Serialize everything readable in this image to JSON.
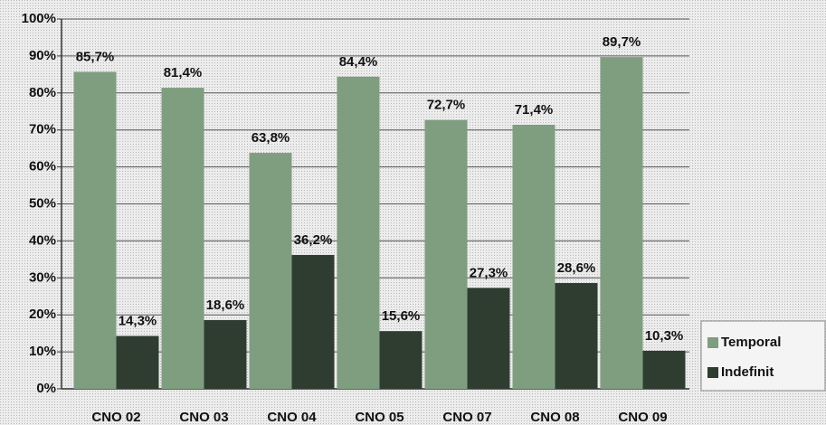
{
  "chart_data": {
    "type": "bar",
    "categories": [
      "CNO 02",
      "CNO 03",
      "CNO 04",
      "CNO 05",
      "CNO 07",
      "CNO 08",
      "CNO 09"
    ],
    "series": [
      {
        "name": "Temporal",
        "color": "#7f9e80",
        "values": [
          85.7,
          81.4,
          63.8,
          84.4,
          72.7,
          71.4,
          89.7
        ],
        "value_labels": [
          "85,7%",
          "81,4%",
          "63,8%",
          "84,4%",
          "72,7%",
          "71,4%",
          "89,7%"
        ]
      },
      {
        "name": "Indefinit",
        "color": "#2f3d31",
        "values": [
          14.3,
          18.6,
          36.2,
          15.6,
          27.3,
          28.6,
          10.3
        ],
        "value_labels": [
          "14,3%",
          "18,6%",
          "36,2%",
          "15,6%",
          "27,3%",
          "28,6%",
          "10,3%"
        ]
      }
    ],
    "ylim": [
      0,
      100
    ],
    "yticks": [
      {
        "value": 0,
        "label": "0%"
      },
      {
        "value": 10,
        "label": "10%"
      },
      {
        "value": 20,
        "label": "20%"
      },
      {
        "value": 30,
        "label": "30%"
      },
      {
        "value": 40,
        "label": "40%"
      },
      {
        "value": 50,
        "label": "50%"
      },
      {
        "value": 60,
        "label": "60%"
      },
      {
        "value": 70,
        "label": "70%"
      },
      {
        "value": 80,
        "label": "80%"
      },
      {
        "value": 90,
        "label": "90%"
      },
      {
        "value": 100,
        "label": "100%"
      }
    ],
    "grid": true,
    "legend": "right"
  }
}
